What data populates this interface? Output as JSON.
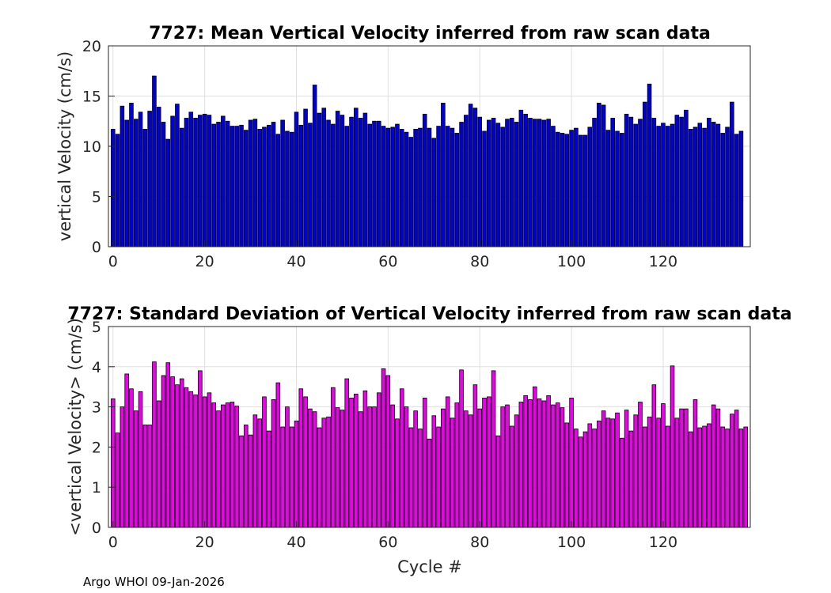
{
  "footer": "Argo WHOI 09-Jan-2026",
  "colors": {
    "top_bar": "#0000dd",
    "bottom_bar": "#ee00ee",
    "bar_edge": "#000000",
    "grid": "#dfdfdf"
  },
  "chart_data": [
    {
      "type": "bar",
      "title": "7727: Mean Vertical Velocity inferred from raw scan data",
      "xlabel": "",
      "ylabel": "vertical Velocity (cm/s)",
      "xlim": [
        -1,
        139
      ],
      "ylim": [
        0,
        20
      ],
      "xticks": [
        0,
        20,
        40,
        60,
        80,
        100,
        120
      ],
      "yticks": [
        0,
        5,
        10,
        15,
        20
      ],
      "x_start": 0,
      "values": [
        11.7,
        11.2,
        14.0,
        12.6,
        14.3,
        12.7,
        13.4,
        11.7,
        13.5,
        17.0,
        13.9,
        12.4,
        10.7,
        13.0,
        14.2,
        11.8,
        12.8,
        13.4,
        12.8,
        13.1,
        13.2,
        13.1,
        12.2,
        12.4,
        13.0,
        12.5,
        12.0,
        12.0,
        12.1,
        11.6,
        12.6,
        12.7,
        11.7,
        11.9,
        12.1,
        12.4,
        11.2,
        12.6,
        11.5,
        11.4,
        13.4,
        12.1,
        13.7,
        12.3,
        16.1,
        13.3,
        13.8,
        12.6,
        12.2,
        13.5,
        13.1,
        12.0,
        12.9,
        13.8,
        12.8,
        13.3,
        12.2,
        12.5,
        12.5,
        12.0,
        11.8,
        11.9,
        12.2,
        11.7,
        11.4,
        10.9,
        11.7,
        11.8,
        13.2,
        11.8,
        10.8,
        12.0,
        14.3,
        12.0,
        11.8,
        11.3,
        12.4,
        13.1,
        14.2,
        13.8,
        12.9,
        11.5,
        12.6,
        12.8,
        12.3,
        11.9,
        12.7,
        12.8,
        12.4,
        13.6,
        13.2,
        12.8,
        12.7,
        12.7,
        12.6,
        12.7,
        12.0,
        11.4,
        11.3,
        11.2,
        11.6,
        11.8,
        11.1,
        11.1,
        11.9,
        12.8,
        14.3,
        14.1,
        11.6,
        12.8,
        11.5,
        11.3,
        13.2,
        12.9,
        12.2,
        12.7,
        14.4,
        16.2,
        12.8,
        12.0,
        12.3,
        12.0,
        12.2,
        13.1,
        12.9,
        13.6,
        11.7,
        11.9,
        12.3,
        11.8,
        12.8,
        12.4,
        12.2,
        11.3,
        11.9,
        14.4,
        11.2,
        11.5
      ]
    },
    {
      "type": "bar",
      "title": "7727: Standard Deviation of Vertical Velocity inferred from raw scan data",
      "xlabel": "Cycle #",
      "ylabel": "<vertical Velocity> (cm/s)",
      "xlim": [
        -1,
        139
      ],
      "ylim": [
        0,
        5
      ],
      "xticks": [
        0,
        20,
        40,
        60,
        80,
        100,
        120
      ],
      "yticks": [
        0,
        1,
        2,
        3,
        4,
        5
      ],
      "x_start": 0,
      "values": [
        3.2,
        2.35,
        3.0,
        3.82,
        3.45,
        2.9,
        3.38,
        2.55,
        2.55,
        4.12,
        3.15,
        3.78,
        4.1,
        3.75,
        3.55,
        3.7,
        3.48,
        3.38,
        3.3,
        3.9,
        3.25,
        3.35,
        3.1,
        2.9,
        3.05,
        3.1,
        3.12,
        3.02,
        2.28,
        2.55,
        2.3,
        2.8,
        2.7,
        3.25,
        2.4,
        3.18,
        3.6,
        2.5,
        3.0,
        2.5,
        2.65,
        3.45,
        3.25,
        2.95,
        2.88,
        2.48,
        2.72,
        2.75,
        3.48,
        2.98,
        2.92,
        3.7,
        3.22,
        3.32,
        2.88,
        3.4,
        3.0,
        3.0,
        3.35,
        3.95,
        3.78,
        3.05,
        2.7,
        3.45,
        3.0,
        2.48,
        2.9,
        2.45,
        3.22,
        2.2,
        2.78,
        2.5,
        2.95,
        3.25,
        2.72,
        3.1,
        3.92,
        2.9,
        2.8,
        3.55,
        2.95,
        3.22,
        3.25,
        3.9,
        2.28,
        3.0,
        3.05,
        2.52,
        2.8,
        3.12,
        3.28,
        3.18,
        3.5,
        3.2,
        3.15,
        3.28,
        3.05,
        3.1,
        2.98,
        2.6,
        3.22,
        2.45,
        2.25,
        2.38,
        2.58,
        2.45,
        2.65,
        2.9,
        2.72,
        2.7,
        2.85,
        2.22,
        2.92,
        2.4,
        2.8,
        3.12,
        2.5,
        2.75,
        3.55,
        2.72,
        3.08,
        2.52,
        4.02,
        2.72,
        2.95,
        2.95,
        2.38,
        3.18,
        2.48,
        2.52,
        2.58,
        3.05,
        2.95,
        2.5,
        2.45,
        2.82,
        2.92,
        2.45,
        2.5
      ]
    }
  ]
}
